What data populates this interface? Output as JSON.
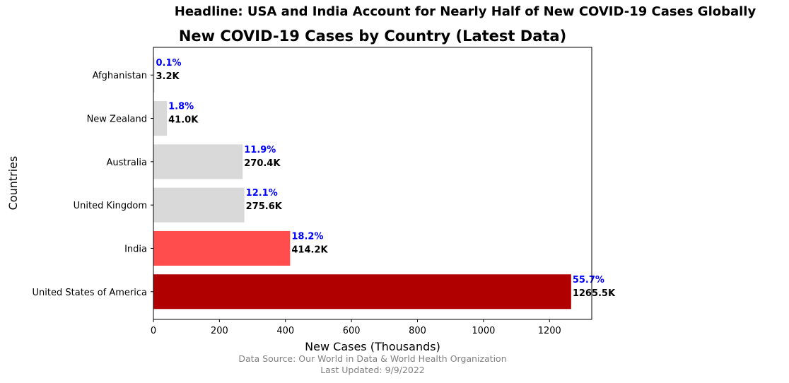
{
  "headline": "Headline: USA and India Account for Nearly Half of New COVID-19 Cases Globally",
  "footer": {
    "source": "Data Source: Our World in Data & World Health Organization",
    "updated": "Last Updated: 9/9/2022"
  },
  "chart_data": {
    "type": "bar",
    "orientation": "horizontal",
    "title": "New COVID-19 Cases by Country (Latest Data)",
    "xlabel": "New Cases (Thousands)",
    "ylabel": "Countries",
    "xlim": [
      0,
      1328
    ],
    "xticks": [
      0,
      200,
      400,
      600,
      800,
      1000,
      1200
    ],
    "grid": false,
    "categories": [
      "United States of America",
      "India",
      "United Kingdom",
      "Australia",
      "New Zealand",
      "Afghanistan"
    ],
    "values": [
      1265.5,
      414.2,
      275.6,
      270.4,
      41.0,
      3.2
    ],
    "value_labels": [
      "1265.5K",
      "414.2K",
      "275.6K",
      "270.4K",
      "41.0K",
      "3.2K"
    ],
    "percent_labels": [
      "55.7%",
      "18.2%",
      "12.1%",
      "11.9%",
      "1.8%",
      "0.1%"
    ],
    "colors": [
      "#b00000",
      "#ff4d4d",
      "#d9d9d9",
      "#d9d9d9",
      "#d9d9d9",
      "#d9d9d9"
    ],
    "percent_color": "#0000ff",
    "value_label_color": "#000000"
  }
}
